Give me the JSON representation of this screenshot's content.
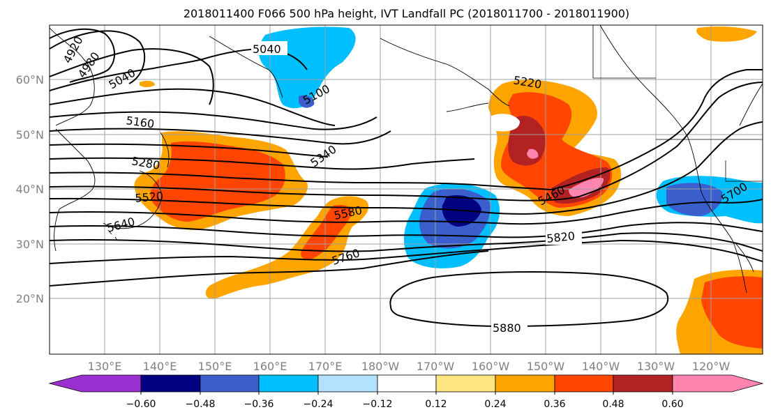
{
  "title": "2018011400 F066 500 hPa height, IVT Landfall PC (2018011700 - 2018011900)",
  "map": {
    "lon_labels": [
      "130°E",
      "140°E",
      "150°E",
      "160°E",
      "170°E",
      "180°W",
      "170°W",
      "160°W",
      "150°W",
      "140°W",
      "130°W",
      "120°W"
    ],
    "lat_labels": [
      "60°N",
      "50°N",
      "40°N",
      "30°N",
      "20°N"
    ],
    "contour_labels": [
      "4920",
      "4980",
      "5040",
      "5040",
      "5100",
      "5160",
      "5280",
      "5220",
      "5340",
      "5460",
      "5520",
      "5580",
      "5640",
      "5700",
      "5760",
      "5820",
      "5880"
    ]
  },
  "colorbar": {
    "ticks": [
      "−0.60",
      "−0.48",
      "−0.36",
      "−0.24",
      "−0.12",
      "0.12",
      "0.24",
      "0.36",
      "0.48",
      "0.60"
    ],
    "colors": [
      "#9b30d0",
      "#000080",
      "#3a5fcd",
      "#00bfff",
      "#b2e2ff",
      "#ffffff",
      "#ffe680",
      "#ffa500",
      "#ff4500",
      "#b22222",
      "#ff85b0",
      "#ffc0e0"
    ]
  }
}
